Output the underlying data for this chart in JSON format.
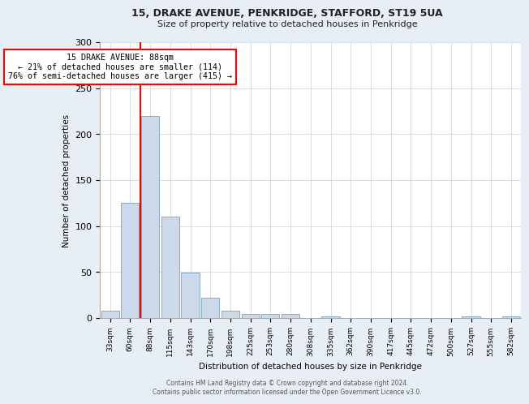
{
  "title1": "15, DRAKE AVENUE, PENKRIDGE, STAFFORD, ST19 5UA",
  "title2": "Size of property relative to detached houses in Penkridge",
  "xlabel": "Distribution of detached houses by size in Penkridge",
  "ylabel": "Number of detached properties",
  "bar_labels": [
    "33sqm",
    "60sqm",
    "88sqm",
    "115sqm",
    "143sqm",
    "170sqm",
    "198sqm",
    "225sqm",
    "253sqm",
    "280sqm",
    "308sqm",
    "335sqm",
    "362sqm",
    "390sqm",
    "417sqm",
    "445sqm",
    "472sqm",
    "500sqm",
    "527sqm",
    "555sqm",
    "582sqm"
  ],
  "bar_values": [
    8,
    125,
    220,
    110,
    49,
    22,
    8,
    4,
    4,
    4,
    0,
    2,
    0,
    0,
    0,
    0,
    0,
    0,
    2,
    0,
    2
  ],
  "bar_color": "#ccd9e8",
  "bar_edgecolor": "#7aa0c0",
  "red_line_x": 1.5,
  "annotation_line1": "15 DRAKE AVENUE: 88sqm",
  "annotation_line2": "← 21% of detached houses are smaller (114)",
  "annotation_line3": "76% of semi-detached houses are larger (415) →",
  "ylim": [
    0,
    300
  ],
  "yticks": [
    0,
    50,
    100,
    150,
    200,
    250,
    300
  ],
  "footer1": "Contains HM Land Registry data © Crown copyright and database right 2024.",
  "footer2": "Contains public sector information licensed under the Open Government Licence v3.0.",
  "bg_color": "#e8eef5",
  "plot_bg_color": "#ffffff"
}
